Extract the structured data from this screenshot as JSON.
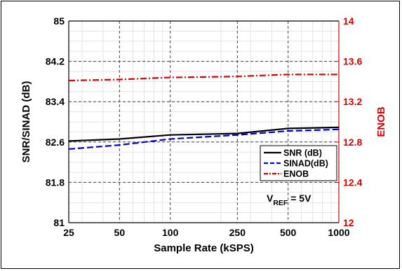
{
  "chart_data": {
    "type": "line",
    "xlabel": "Sample Rate (kSPS)",
    "ylabel_left": "SNR/SINAD (dB)",
    "ylabel_right": "ENOB",
    "x_scale": "log",
    "x": [
      25,
      50,
      100,
      250,
      500,
      1000
    ],
    "x_ticks": [
      "25",
      "50",
      "100",
      "250",
      "500",
      "1000"
    ],
    "ylim_left": [
      81,
      85
    ],
    "yticks_left": [
      "81",
      "81.8",
      "82.6",
      "83.4",
      "84.2",
      "85"
    ],
    "ylim_right": [
      12,
      14
    ],
    "yticks_right": [
      "12",
      "12.4",
      "12.8",
      "13.2",
      "13.6",
      "14"
    ],
    "grid": true,
    "legend_position": "bottom-right",
    "series": [
      {
        "name": "SNR (dB)",
        "axis": "left",
        "color": "#000000",
        "style": "solid",
        "values": [
          82.62,
          82.66,
          82.74,
          82.77,
          82.87,
          82.89
        ]
      },
      {
        "name": "SINAD(dB)",
        "axis": "left",
        "color": "#0000dd",
        "style": "dash",
        "values": [
          82.46,
          82.54,
          82.66,
          82.74,
          82.82,
          82.85
        ]
      },
      {
        "name": "ENOB",
        "axis": "right",
        "color": "#dd0000",
        "style": "dashdot",
        "values": [
          13.41,
          13.42,
          13.44,
          13.45,
          13.47,
          13.47
        ]
      }
    ],
    "annotation": {
      "main": "V",
      "sub": "REF",
      "rest": " = 5V"
    }
  }
}
